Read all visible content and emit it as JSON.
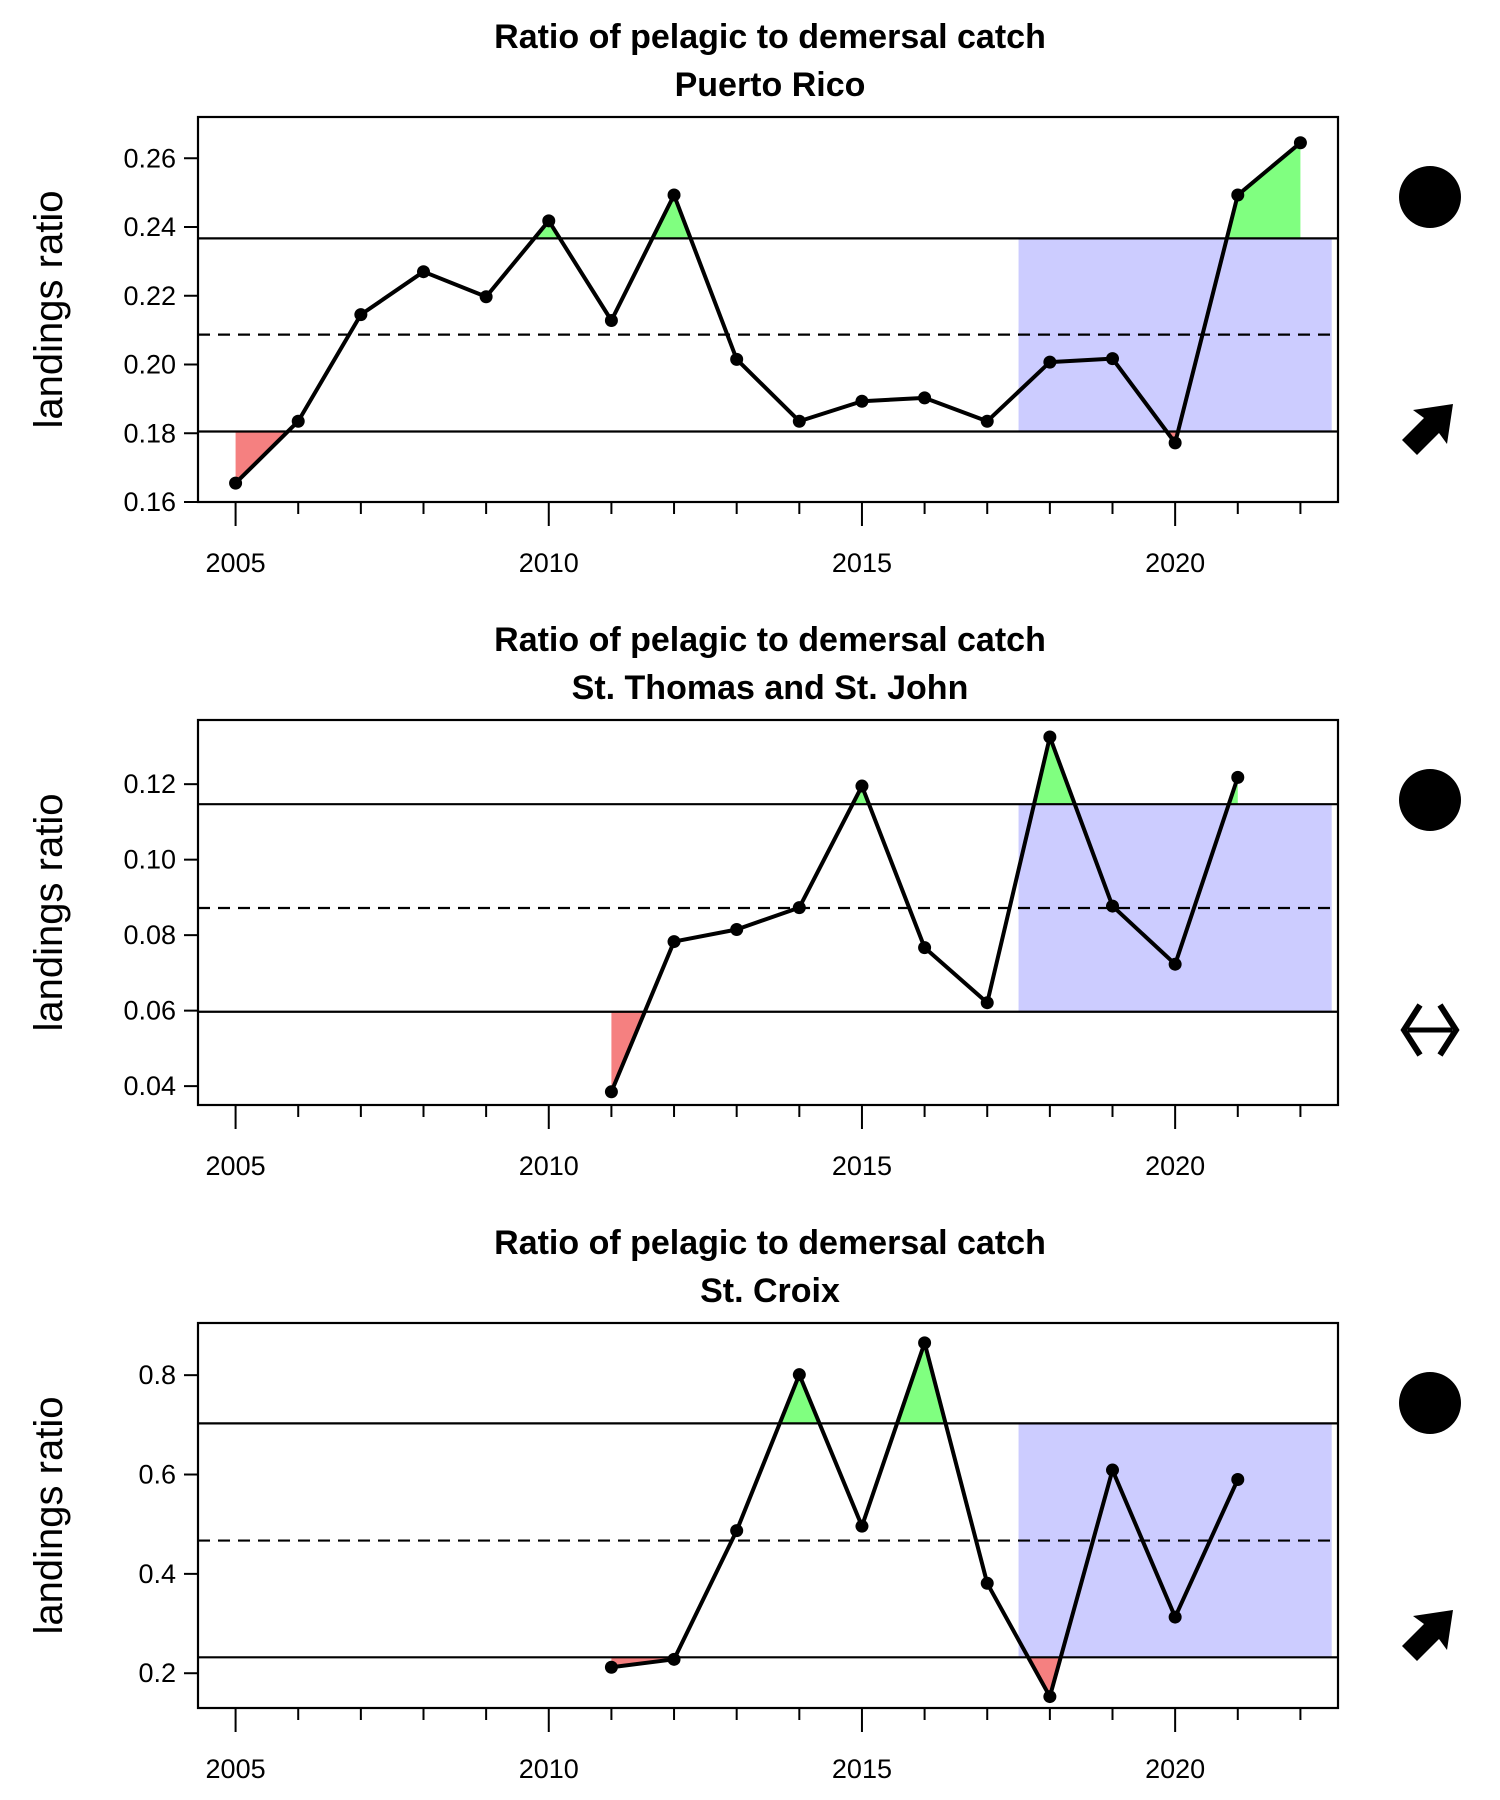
{
  "chart_data": [
    {
      "type": "line",
      "title": "Ratio of pelagic to demersal catch",
      "subtitle": "Puerto Rico",
      "ylabel": "landings ratio",
      "xlabel": "",
      "xlim": [
        2004.4,
        2022.6
      ],
      "ylim": [
        0.16,
        0.272
      ],
      "yticks": [
        0.16,
        0.18,
        0.2,
        0.22,
        0.24,
        0.26
      ],
      "ytick_labels": [
        "0.16",
        "0.18",
        "0.20",
        "0.22",
        "0.24",
        "0.26"
      ],
      "xticks": [
        2005,
        2010,
        2015,
        2020
      ],
      "xtick_labels": [
        "2005",
        "2010",
        "2015",
        "2020"
      ],
      "x": [
        2005,
        2006,
        2007,
        2008,
        2009,
        2010,
        2011,
        2012,
        2013,
        2014,
        2015,
        2016,
        2017,
        2018,
        2019,
        2020,
        2021,
        2022
      ],
      "y": [
        0.1655,
        0.1835,
        0.2145,
        0.227,
        0.2197,
        0.2418,
        0.2128,
        0.2493,
        0.2015,
        0.1835,
        0.1893,
        0.1903,
        0.1835,
        0.2007,
        0.2017,
        0.1772,
        0.2493,
        0.2645
      ],
      "mean": 0.2087,
      "upper_sd": 0.2367,
      "lower_sd": 0.1805,
      "recent_window": [
        2017.5,
        2022.5
      ],
      "trend_symbol": "filled-circle",
      "mean_symbol": "up-right-arrow",
      "colors": {
        "line": "#000000",
        "above": "#80ff80",
        "below": "#f58080",
        "recent": "#ccccff"
      }
    },
    {
      "type": "line",
      "title": "Ratio of pelagic to demersal catch",
      "subtitle": "St. Thomas and St. John",
      "ylabel": "landings ratio",
      "xlabel": "",
      "xlim": [
        2004.4,
        2022.6
      ],
      "ylim": [
        0.035,
        0.137
      ],
      "yticks": [
        0.04,
        0.06,
        0.08,
        0.1,
        0.12
      ],
      "ytick_labels": [
        "0.04",
        "0.06",
        "0.08",
        "0.10",
        "0.12"
      ],
      "xticks": [
        2005,
        2010,
        2015,
        2020
      ],
      "xtick_labels": [
        "2005",
        "2010",
        "2015",
        "2020"
      ],
      "x": [
        2011,
        2012,
        2013,
        2014,
        2015,
        2016,
        2017,
        2018,
        2019,
        2020,
        2021
      ],
      "y": [
        0.0385,
        0.0783,
        0.0815,
        0.0873,
        0.1195,
        0.0767,
        0.0621,
        0.1325,
        0.0877,
        0.0723,
        0.1218
      ],
      "mean": 0.0872,
      "upper_sd": 0.1147,
      "lower_sd": 0.0597,
      "recent_window": [
        2017.5,
        2022.5
      ],
      "trend_symbol": "filled-circle",
      "mean_symbol": "left-right-arrow",
      "colors": {
        "line": "#000000",
        "above": "#80ff80",
        "below": "#f58080",
        "recent": "#ccccff"
      }
    },
    {
      "type": "line",
      "title": "Ratio of pelagic to demersal catch",
      "subtitle": "St. Croix",
      "ylabel": "landings ratio",
      "xlabel": "",
      "xlim": [
        2004.4,
        2022.6
      ],
      "ylim": [
        0.13,
        0.905
      ],
      "yticks": [
        0.2,
        0.4,
        0.6,
        0.8
      ],
      "ytick_labels": [
        "0.2",
        "0.4",
        "0.6",
        "0.8"
      ],
      "xticks": [
        2005,
        2010,
        2015,
        2020
      ],
      "xtick_labels": [
        "2005",
        "2010",
        "2015",
        "2020"
      ],
      "x": [
        2011,
        2012,
        2013,
        2014,
        2015,
        2016,
        2017,
        2018,
        2019,
        2020,
        2021
      ],
      "y": [
        0.212,
        0.228,
        0.487,
        0.801,
        0.496,
        0.865,
        0.381,
        0.153,
        0.609,
        0.313,
        0.59
      ],
      "mean": 0.467,
      "upper_sd": 0.703,
      "lower_sd": 0.232,
      "recent_window": [
        2017.5,
        2022.5
      ],
      "trend_symbol": "filled-circle",
      "mean_symbol": "up-right-arrow",
      "colors": {
        "line": "#000000",
        "above": "#80ff80",
        "below": "#f58080",
        "recent": "#ccccff"
      }
    }
  ]
}
